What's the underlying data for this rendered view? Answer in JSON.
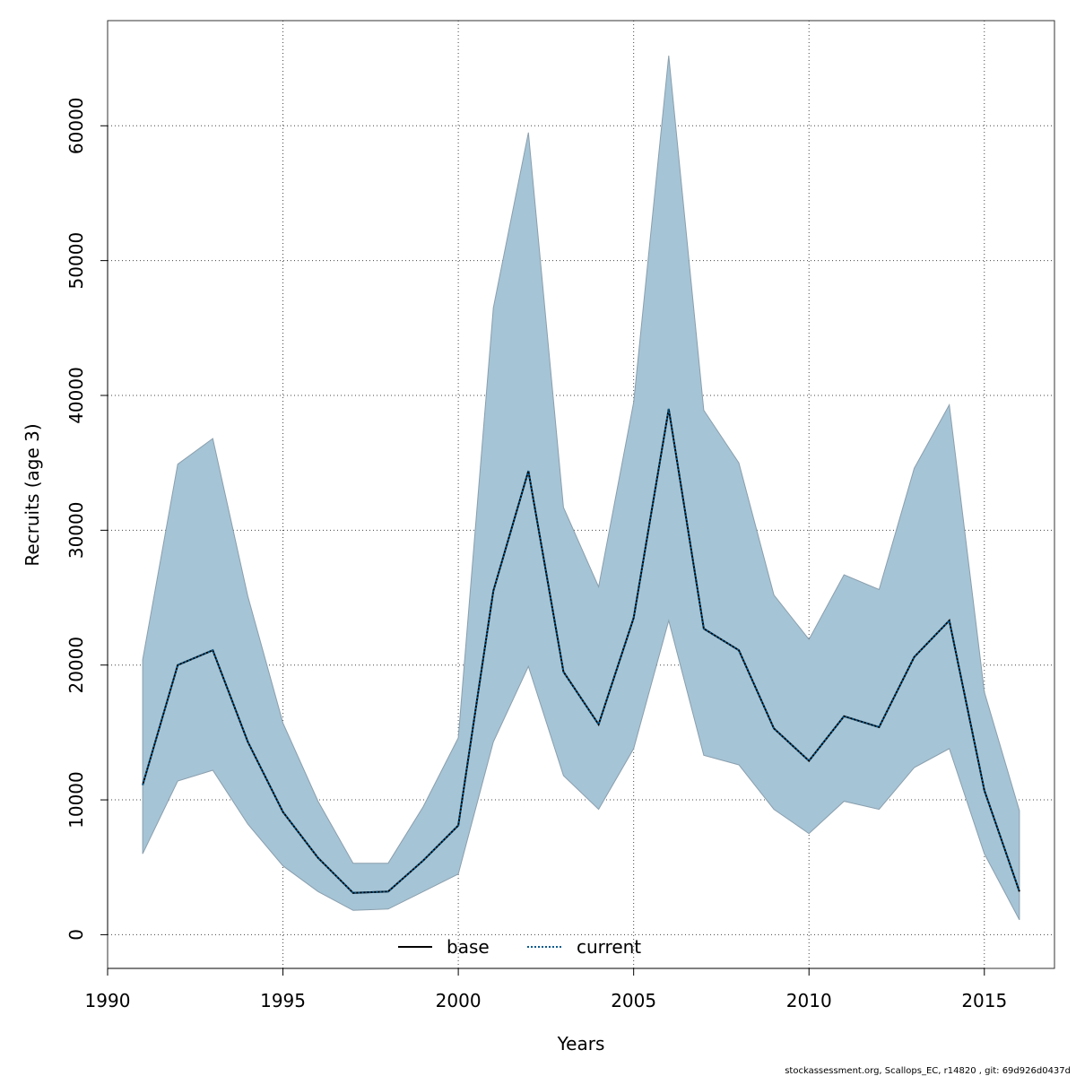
{
  "chart_data": {
    "type": "area",
    "xlabel": "Years",
    "ylabel": "Recruits (age 3)",
    "xlim": [
      1990,
      2017
    ],
    "ylim": [
      -2500,
      67800
    ],
    "x_ticks": [
      1990,
      1995,
      2000,
      2005,
      2010,
      2015
    ],
    "y_ticks": [
      0,
      10000,
      20000,
      30000,
      40000,
      50000,
      60000
    ],
    "x_tick_labels": [
      "1990",
      "1995",
      "2000",
      "2005",
      "2010",
      "2015"
    ],
    "y_tick_labels": [
      "0",
      "10000",
      "20000",
      "30000",
      "40000",
      "50000",
      "60000"
    ],
    "grid": true,
    "legend_position": "bottom",
    "legend": [
      {
        "name": "base",
        "style": "solid",
        "color": "#000000"
      },
      {
        "name": "current",
        "style": "dotted",
        "color": "#0a5a8c"
      }
    ],
    "x": [
      1991,
      1992,
      1993,
      1994,
      1995,
      1996,
      1997,
      1998,
      1999,
      2000,
      2001,
      2002,
      2003,
      2004,
      2005,
      2006,
      2007,
      2008,
      2009,
      2010,
      2011,
      2012,
      2013,
      2014,
      2015,
      2016
    ],
    "series": [
      {
        "name": "base",
        "values": [
          11100,
          20000,
          21100,
          14300,
          9100,
          5700,
          3100,
          3200,
          5500,
          8100,
          25500,
          34400,
          19500,
          15600,
          23500,
          39000,
          22700,
          21100,
          15300,
          12900,
          16200,
          15400,
          20600,
          23300,
          10700,
          3200
        ]
      },
      {
        "name": "current",
        "values": [
          11100,
          20000,
          21100,
          14300,
          9100,
          5700,
          3100,
          3200,
          5500,
          8100,
          25500,
          34400,
          19500,
          15600,
          23500,
          39000,
          22700,
          21100,
          15300,
          12900,
          16200,
          15400,
          20600,
          23300,
          10700,
          3200
        ]
      }
    ],
    "ci_lower": [
      6000,
      11400,
      12200,
      8200,
      5100,
      3200,
      1800,
      1900,
      3200,
      4500,
      14300,
      19900,
      11800,
      9300,
      13800,
      23300,
      13300,
      12600,
      9300,
      7500,
      9900,
      9300,
      12400,
      13800,
      6000,
      1100
    ],
    "ci_upper": [
      20400,
      34900,
      36800,
      25100,
      15700,
      9900,
      5300,
      5300,
      9500,
      14600,
      46500,
      59500,
      31700,
      25800,
      39500,
      65200,
      38900,
      35000,
      25200,
      21900,
      26700,
      25600,
      34600,
      39300,
      18000,
      9200
    ]
  },
  "colors": {
    "band_fill": "#a5c4d5",
    "band_stroke": "#8a9fae",
    "grid": "#444444",
    "axis": "#333333",
    "current_line": "#0a5a8c",
    "base_line": "#000000"
  },
  "footer": {
    "note": "stockassessment.org, Scallops_EC, r14820 , git: 69d926d0437d"
  }
}
